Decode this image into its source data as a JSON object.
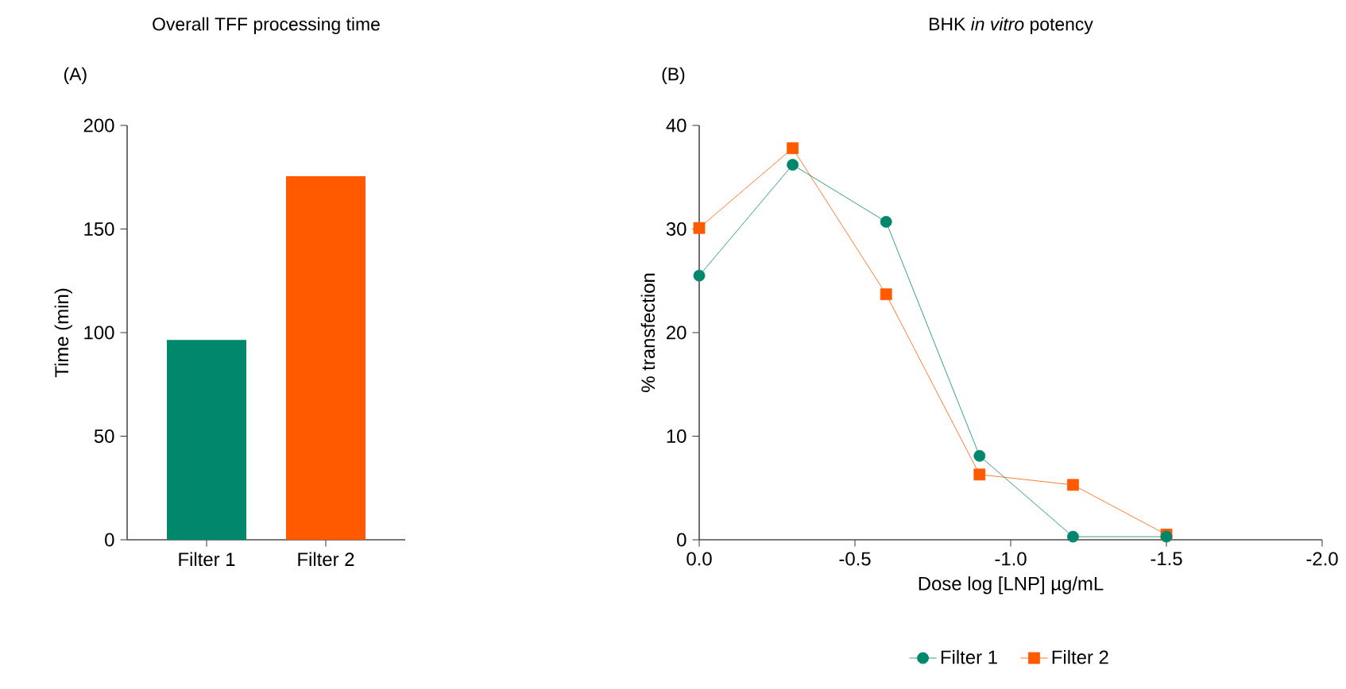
{
  "chart_data": [
    {
      "type": "bar",
      "title": "Overall TFF processing time",
      "annotations": [
        "(A)"
      ],
      "ylabel": "Time (min)",
      "categories": [
        "Filter 1",
        "Filter 2"
      ],
      "values": [
        96.5,
        175.5
      ],
      "colors": [
        "#00876c",
        "#ff5a00"
      ],
      "ylim": [
        0,
        200
      ],
      "yticks": [
        0,
        50,
        100,
        150,
        200
      ]
    },
    {
      "type": "line",
      "title": "BHK *in vitro* potency",
      "annotations": [
        "(B)"
      ],
      "ylabel": "% transfection",
      "xlabel": "Dose log [LNP] µg/mL",
      "x": [
        0,
        -0.3,
        -0.6,
        -0.9,
        -1.2,
        -1.5
      ],
      "series": [
        {
          "name": "Filter 1",
          "color": "#00876c",
          "marker": "circle",
          "values": [
            25.5,
            36.2,
            30.7,
            8.1,
            0.3,
            0.3
          ]
        },
        {
          "name": "Filter 2",
          "color": "#ff5a00",
          "marker": "square",
          "values": [
            30.1,
            37.8,
            23.7,
            6.3,
            5.3,
            0.5
          ]
        }
      ],
      "xlim": [
        0,
        -2
      ],
      "xticks": [
        {
          "value": 0,
          "label": "0.0"
        },
        {
          "value": -0.5,
          "label": "-0.5"
        },
        {
          "value": -1,
          "label": "-1.0"
        },
        {
          "value": -1.5,
          "label": "-1.5"
        },
        {
          "value": -2,
          "label": "-2.0"
        }
      ],
      "ylim": [
        0,
        40
      ],
      "yticks": [
        0,
        10,
        20,
        30,
        40
      ],
      "legend": "bottom"
    }
  ]
}
